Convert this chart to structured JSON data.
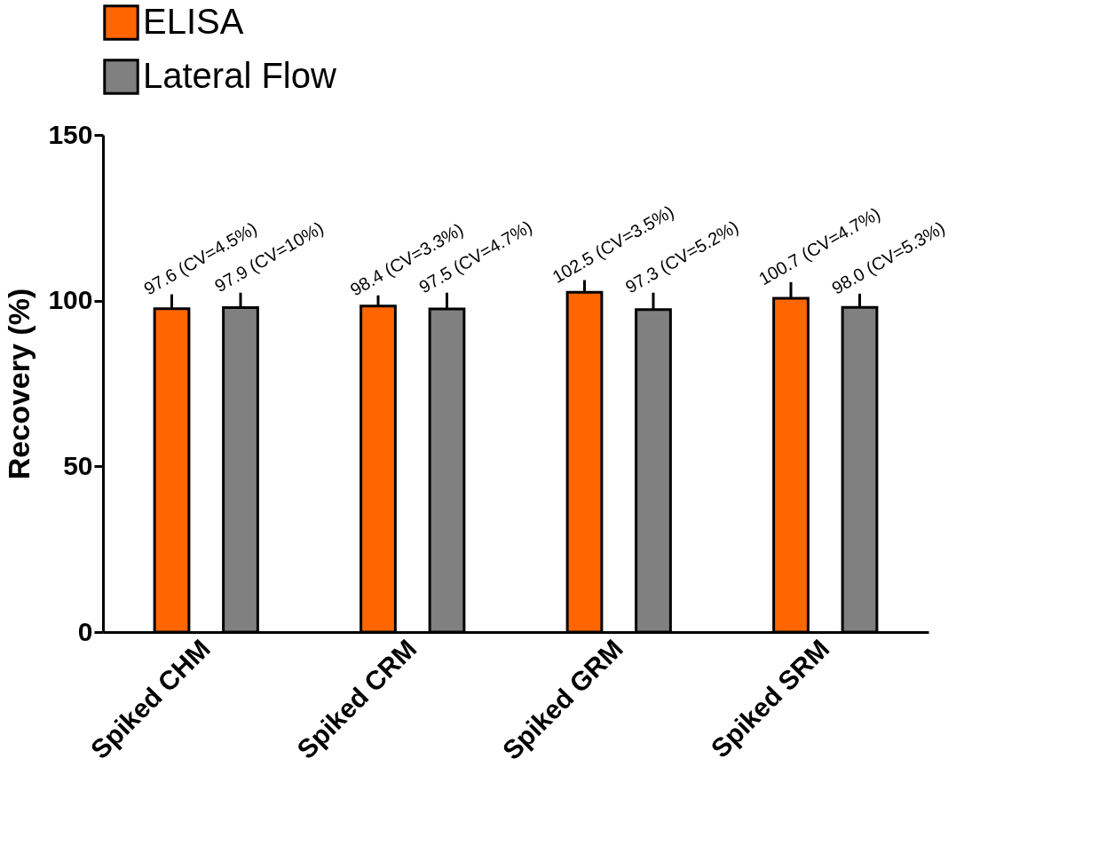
{
  "chart_data": {
    "type": "bar",
    "ylabel": "Recovery (%)",
    "categories": [
      "Spiked CHM",
      "Spiked CRM",
      "Spiked GRM",
      "Spiked SRM"
    ],
    "series": [
      {
        "name": "ELISA",
        "color": "#ff6600",
        "values": [
          97.6,
          98.4,
          102.5,
          100.7
        ],
        "errors": [
          [
            97.6,
            101.9
          ],
          [
            98.4,
            101.6
          ],
          [
            102.5,
            106.2
          ],
          [
            100.7,
            105.6
          ]
        ],
        "value_labels": [
          "97.6 (CV=4.5%)",
          "98.4 (CV=3.3%)",
          "102.5 (CV=3.5%)",
          "100.7 (CV=4.7%)"
        ]
      },
      {
        "name": "Lateral Flow",
        "color": "#808080",
        "values": [
          97.9,
          97.5,
          97.3,
          98.0
        ],
        "errors": [
          [
            97.9,
            102.4
          ],
          [
            97.5,
            102.4
          ],
          [
            97.3,
            102.4
          ],
          [
            98.0,
            102.1
          ]
        ],
        "value_labels": [
          "97.9 (CV=10%)",
          "97.5 (CV=4.7%)",
          "97.3 (CV=5.2%)",
          "98.0 (CV=5.3%)"
        ]
      }
    ],
    "ylim": [
      0,
      150
    ],
    "yticks": [
      0,
      50,
      100,
      150
    ],
    "grid": false,
    "legend": "top left"
  }
}
